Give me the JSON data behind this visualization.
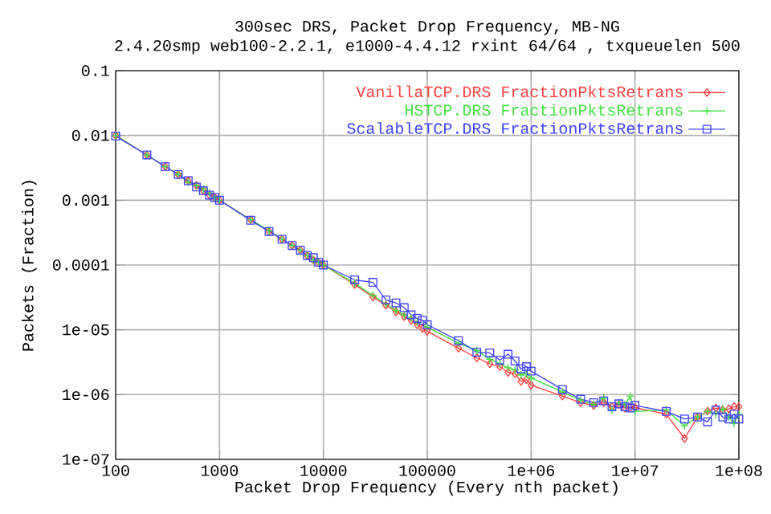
{
  "chart_data": {
    "type": "line",
    "title": "300sec DRS, Packet Drop Frequency, MB-NG",
    "subtitle": "2.4.20smp web100-2.2.1, e1000-4.4.12 rxint 64/64 , txqueuelen 500",
    "xlabel": "Packet Drop Frequency (Every nth packet)",
    "ylabel": "Packets (Fraction)",
    "log": "xy",
    "grid": true,
    "legend": "top right",
    "xlim": [
      100,
      100000000
    ],
    "ylim": [
      1e-07,
      0.1
    ],
    "xticks": [
      100,
      1000,
      10000,
      100000,
      {
        "value": 1000000,
        "label": "1e+06"
      },
      {
        "value": 10000000,
        "label": "1e+07"
      },
      {
        "value": 100000000,
        "label": "1e+08"
      }
    ],
    "yticks": [
      {
        "value": 1e-07,
        "label": "1e-07"
      },
      {
        "value": 1e-06,
        "label": "1e-06"
      },
      {
        "value": 1e-05,
        "label": "1e-05"
      },
      0.0001,
      0.001,
      0.01,
      0.1
    ],
    "x": [
      100,
      200,
      300,
      400,
      500,
      600,
      700,
      800,
      900,
      1000,
      2000,
      3000,
      4000,
      5000,
      6000,
      7000,
      8000,
      9000,
      10000,
      20000,
      30000,
      40000,
      50000,
      60000,
      70000,
      80000,
      90000,
      100000,
      200000,
      300000,
      400000,
      500000,
      600000,
      700000,
      800000,
      900000,
      1000000,
      2000000,
      3000000,
      4000000,
      5000000,
      6000000,
      7000000,
      8000000,
      9000000,
      10000000,
      20000000,
      30000000,
      40000000,
      50000000,
      60000000,
      70000000,
      80000000,
      90000000,
      100000000
    ],
    "series": [
      {
        "name": "VanillaTCP.DRS FractionPktsRetrans",
        "color": "#ff4040",
        "marker": "diamond",
        "values": [
          0.01,
          0.005,
          0.0033,
          0.0025,
          0.002,
          0.0017,
          0.0014,
          0.0012,
          0.0011,
          0.001,
          0.0005,
          0.00033,
          0.00025,
          0.0002,
          0.00017,
          0.00014,
          0.00012,
          0.00011,
          0.0001,
          5e-05,
          3.2e-05,
          2.4e-05,
          1.9e-05,
          1.6e-05,
          1.4e-05,
          1.2e-05,
          1.05e-05,
          9.5e-06,
          5.2e-06,
          3.7e-06,
          3e-06,
          2.7e-06,
          2.2e-06,
          2.1e-06,
          1.6e-06,
          1.7e-06,
          1.4e-06,
          9.5e-07,
          7.5e-07,
          6.8e-07,
          7.5e-07,
          6.5e-07,
          7e-07,
          6.2e-07,
          6.3e-07,
          6.3e-07,
          5e-07,
          2.1e-07,
          4.5e-07,
          5.6e-07,
          6.2e-07,
          5.8e-07,
          6e-07,
          6.5e-07,
          6.5e-07
        ]
      },
      {
        "name": "HSTCP.DRS FractionPktsRetrans",
        "color": "#40e040",
        "marker": "cross",
        "values": [
          0.01,
          0.005,
          0.0033,
          0.0025,
          0.0019,
          0.0017,
          0.0015,
          0.0013,
          0.0011,
          0.001,
          0.0005,
          0.00034,
          0.00025,
          0.0002,
          0.00017,
          0.00014,
          0.00012,
          0.00011,
          0.0001,
          5.2e-05,
          3.4e-05,
          2.5e-05,
          2e-05,
          1.7e-05,
          1.5e-05,
          1.3e-05,
          null,
          1.1e-05,
          6.2e-06,
          4.8e-06,
          3.5e-06,
          3e-06,
          2.6e-06,
          2.4e-06,
          2e-06,
          2.1e-06,
          1.8e-06,
          1.1e-06,
          8.2e-07,
          7e-07,
          8.8e-07,
          5.8e-07,
          7.5e-07,
          7e-07,
          9.5e-07,
          5.5e-07,
          5.8e-07,
          3.3e-07,
          4.5e-07,
          5.5e-07,
          5e-07,
          6e-07,
          4.5e-07,
          3.6e-07,
          5e-07
        ]
      },
      {
        "name": "ScalableTCP.DRS FractionPktsRetrans",
        "color": "#4040ff",
        "marker": "square",
        "values": [
          0.0098,
          0.005,
          0.0033,
          0.0025,
          0.002,
          0.0016,
          0.0014,
          0.0012,
          0.0011,
          0.001,
          0.00049,
          0.00033,
          0.00025,
          0.0002,
          0.00017,
          0.00014,
          0.00013,
          0.00011,
          0.0001,
          5.9e-05,
          5.4e-05,
          2.9e-05,
          2.6e-05,
          2.2e-05,
          1.7e-05,
          1.5e-05,
          1.4e-05,
          1.2e-05,
          6.8e-06,
          4.5e-06,
          4.4e-06,
          3.4e-06,
          4.2e-06,
          3.3e-06,
          2.5e-06,
          2.7e-06,
          2.3e-06,
          1.2e-06,
          8.5e-07,
          7.5e-07,
          8e-07,
          6.5e-07,
          7.2e-07,
          6.5e-07,
          6.2e-07,
          6.8e-07,
          5.5e-07,
          4.2e-07,
          4.5e-07,
          3.8e-07,
          5.8e-07,
          4.5e-07,
          4.2e-07,
          5e-07,
          4.2e-07
        ]
      }
    ]
  }
}
